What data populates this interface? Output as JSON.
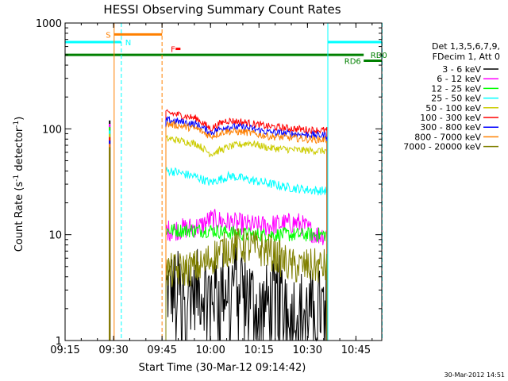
{
  "chart_data": {
    "type": "line",
    "title": "HESSI Observing Summary Count Rates",
    "xlabel": "Start Time (30-Mar-12 09:14:42)",
    "ylabel_main": "Count Rate (s",
    "ylabel_sup1": "-1",
    "ylabel_mid": " detector",
    "ylabel_sup2": "-1",
    "ylabel_end": ")",
    "yscale": "log",
    "xlim": [
      "09:15",
      "10:53"
    ],
    "ylim": [
      1,
      1000
    ],
    "x_ticks": [
      "09:15",
      "09:30",
      "09:45",
      "10:00",
      "10:15",
      "10:30",
      "10:45"
    ],
    "y_ticks": [
      {
        "value": 1,
        "label": "1"
      },
      {
        "value": 10,
        "label": "10"
      },
      {
        "value": 100,
        "label": "100"
      },
      {
        "value": 1000,
        "label": "1000"
      }
    ],
    "timestamp": "30-Mar-2012 14:51",
    "legend_header": [
      "Det 1,3,5,6,7,9,",
      "FDecim 1, Att 0"
    ],
    "series": [
      {
        "name": "3 - 6 keV",
        "color": "#000000",
        "base": [
          [
            9.9,
            3
          ],
          [
            10.05,
            3
          ],
          [
            10.15,
            4
          ],
          [
            10.25,
            2
          ],
          [
            10.4,
            3
          ],
          [
            10.42,
            2
          ]
        ],
        "noise": 0.45
      },
      {
        "name": "6 - 12 keV",
        "color": "#ff00ff",
        "base": [
          [
            9.8,
            11
          ],
          [
            9.95,
            12
          ],
          [
            10.0,
            14
          ],
          [
            10.1,
            13
          ],
          [
            10.25,
            12
          ],
          [
            10.45,
            13
          ],
          [
            10.55,
            10
          ]
        ],
        "noise": 0.12
      },
      {
        "name": "12 - 25 keV",
        "color": "#00ff00",
        "base": [
          [
            9.8,
            11
          ],
          [
            10.0,
            11
          ],
          [
            10.2,
            10
          ],
          [
            10.4,
            10
          ],
          [
            10.55,
            10
          ]
        ],
        "noise": 0.08
      },
      {
        "name": "25 - 50 keV",
        "color": "#00ffff",
        "base": [
          [
            9.8,
            40
          ],
          [
            9.93,
            35
          ],
          [
            10.0,
            31
          ],
          [
            10.1,
            36
          ],
          [
            10.2,
            33
          ],
          [
            10.4,
            28
          ],
          [
            10.55,
            26
          ]
        ],
        "noise": 0.05
      },
      {
        "name": "50 - 100 keV",
        "color": "#cccc00",
        "base": [
          [
            9.8,
            80
          ],
          [
            9.93,
            72
          ],
          [
            10.0,
            58
          ],
          [
            10.1,
            68
          ],
          [
            10.2,
            74
          ],
          [
            10.3,
            66
          ],
          [
            10.45,
            63
          ],
          [
            10.55,
            62
          ]
        ],
        "noise": 0.04
      },
      {
        "name": "100 - 300 keV",
        "color": "#ff0000",
        "base": [
          [
            9.8,
            140
          ],
          [
            9.93,
            125
          ],
          [
            10.0,
            100
          ],
          [
            10.08,
            120
          ],
          [
            10.18,
            115
          ],
          [
            10.3,
            105
          ],
          [
            10.5,
            98
          ],
          [
            10.55,
            97
          ]
        ],
        "noise": 0.04
      },
      {
        "name": "300 - 800 keV",
        "color": "#0000ff",
        "base": [
          [
            9.8,
            120
          ],
          [
            9.93,
            110
          ],
          [
            10.0,
            92
          ],
          [
            10.08,
            105
          ],
          [
            10.18,
            103
          ],
          [
            10.3,
            93
          ],
          [
            10.5,
            88
          ],
          [
            10.55,
            87
          ]
        ],
        "noise": 0.04
      },
      {
        "name": "800 - 7000 keV",
        "color": "#ff8000",
        "base": [
          [
            9.8,
            110
          ],
          [
            9.93,
            100
          ],
          [
            10.0,
            85
          ],
          [
            10.08,
            95
          ],
          [
            10.18,
            93
          ],
          [
            10.3,
            85
          ],
          [
            10.5,
            80
          ],
          [
            10.55,
            79
          ]
        ],
        "noise": 0.04
      },
      {
        "name": "7000 - 20000 keV",
        "color": "#808000",
        "base": [
          [
            9.8,
            4.5
          ],
          [
            9.95,
            5
          ],
          [
            10.05,
            7
          ],
          [
            10.15,
            8
          ],
          [
            10.3,
            7
          ],
          [
            10.42,
            5
          ],
          [
            10.55,
            5
          ]
        ],
        "noise": 0.2
      }
    ],
    "data_start": 9.77,
    "data_end": 10.6,
    "pre_spike": {
      "x": 9.48,
      "top": 120
    },
    "flags": [
      {
        "label": "S",
        "color": "#ff8000",
        "x1": 9.503,
        "x2": 9.75,
        "y": 780,
        "label_at": 9.46
      },
      {
        "label": "N",
        "color": "#00ffff",
        "x1": 9.25,
        "x2": 9.54,
        "y": 660,
        "label_at": 9.56
      },
      {
        "label": "N",
        "color": "#00ffff",
        "x1": 10.605,
        "x2": 10.885,
        "y": 660,
        "label_at": null
      },
      {
        "label": "F",
        "color": "#ff0000",
        "x1": 9.82,
        "x2": 9.845,
        "y": 570,
        "label_at": 9.795
      },
      {
        "label": "RD0",
        "color": "#008000",
        "x1": 9.25,
        "x2": 10.79,
        "y": 500,
        "label_at": 10.825
      },
      {
        "label": "RD6",
        "color": "#008000",
        "x1": 10.79,
        "x2": 10.885,
        "y": 440,
        "label_at": 10.69
      }
    ],
    "vlines": [
      {
        "x": 9.503,
        "color": "#ff8000",
        "dash": false
      },
      {
        "x": 9.54,
        "color": "#00ffff",
        "dash": true
      },
      {
        "x": 9.75,
        "color": "#ff8000",
        "dash": true
      },
      {
        "x": 10.605,
        "color": "#00ffff",
        "dash": false
      },
      {
        "x": 10.885,
        "color": "#00ffff",
        "dash": true
      }
    ]
  }
}
